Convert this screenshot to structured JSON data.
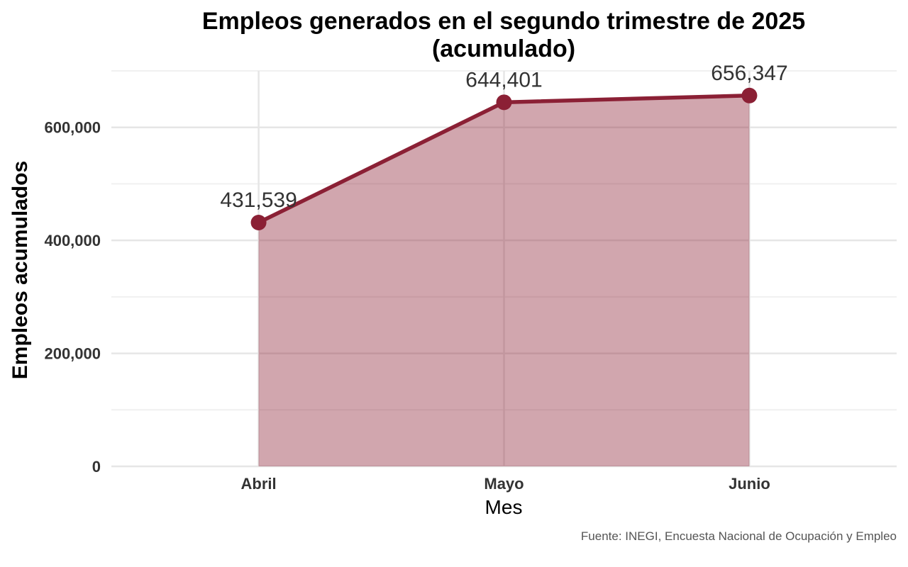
{
  "chart_data": {
    "type": "area",
    "title": "Empleos generados en el segundo trimestre de 2025",
    "subtitle": "(acumulado)",
    "xlabel": "Mes",
    "ylabel": "Empleos acumulados",
    "categories": [
      "Abril",
      "Mayo",
      "Junio"
    ],
    "values": [
      431539,
      644401,
      656347
    ],
    "data_labels": [
      "431,539",
      "644,401",
      "656,347"
    ],
    "y_ticks": [
      0,
      200000,
      400000,
      600000
    ],
    "y_tick_labels": [
      "0",
      "200,000",
      "400,000",
      "600,000"
    ],
    "ylim": [
      0,
      700000
    ],
    "grid": true,
    "legend": "none",
    "caption": "Fuente: INEGI, Encuesta Nacional de Ocupación y Empleo",
    "colors": {
      "line": "#8b2035",
      "fill": "#8b2035",
      "fill_opacity": 0.4
    }
  }
}
